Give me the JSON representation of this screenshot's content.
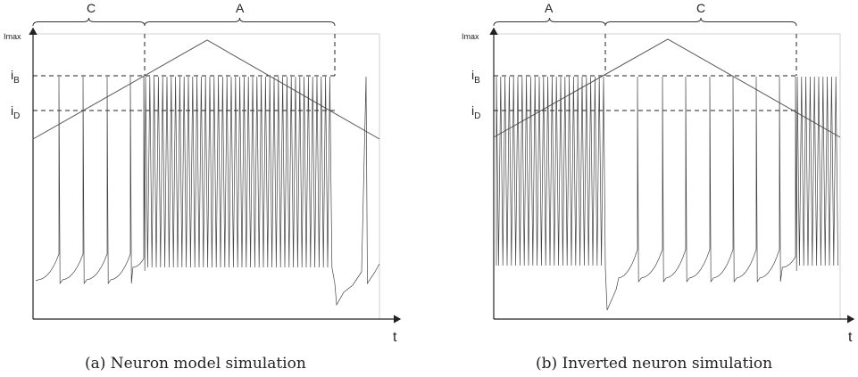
{
  "panels": [
    {
      "id": "a",
      "caption": "(a)  Neuron model simulation",
      "y_top_label": "Imax",
      "iB_label": "i",
      "iB_sub": "B",
      "iD_label": "i",
      "iD_sub": "D",
      "x_label": "t",
      "brace_labels": [
        "C",
        "A"
      ]
    },
    {
      "id": "b",
      "caption": "(b)  Inverted neuron simulation",
      "y_top_label": "Imax",
      "iB_label": "i",
      "iB_sub": "B",
      "iD_label": "i",
      "iD_sub": "D",
      "x_label": "t",
      "brace_labels": [
        "A",
        "C"
      ]
    }
  ]
}
